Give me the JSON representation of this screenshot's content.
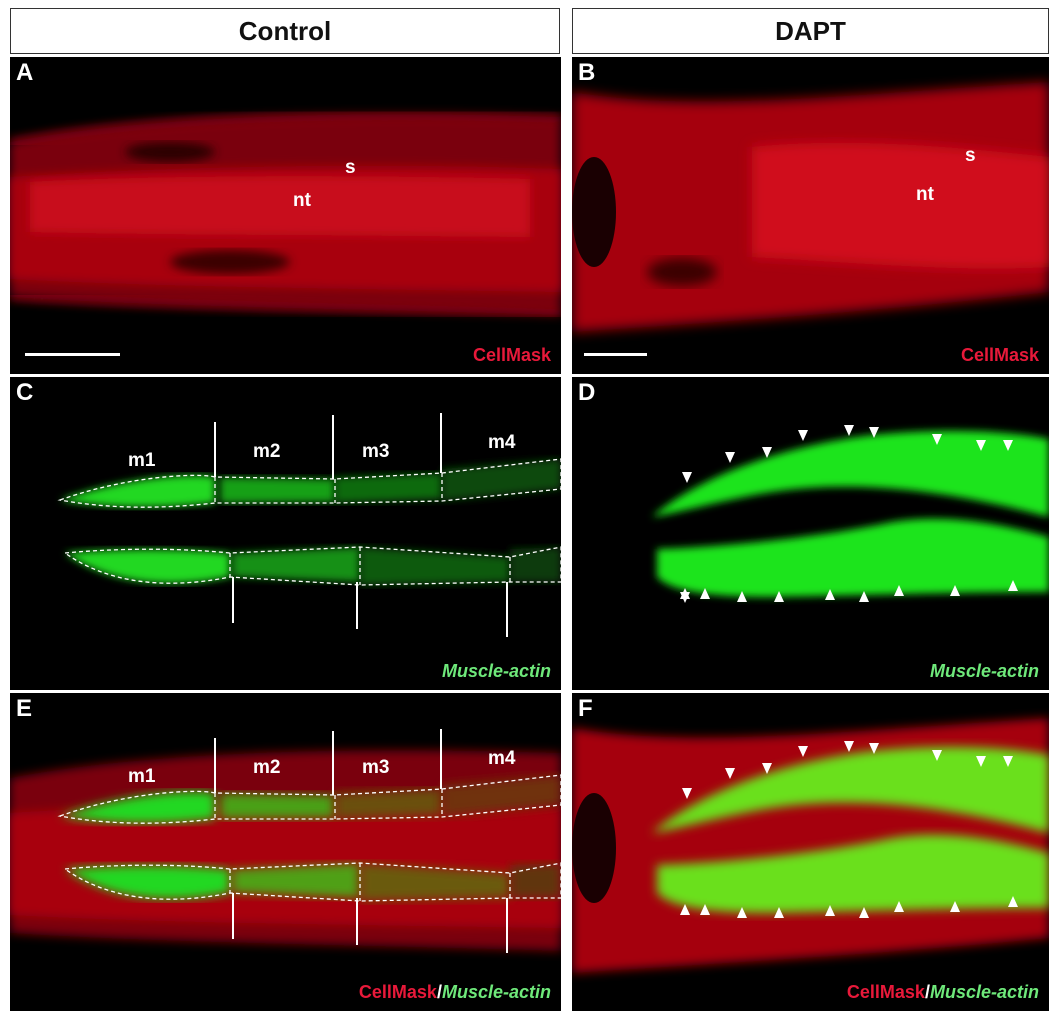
{
  "headers": {
    "control": "Control",
    "dapt": "DAPT"
  },
  "panels": {
    "A": {
      "letter": "A",
      "labels": {
        "s": "s",
        "nt": "nt"
      },
      "stain": "CellMask"
    },
    "B": {
      "letter": "B",
      "labels": {
        "s": "s",
        "nt": "nt"
      },
      "stain": "CellMask"
    },
    "C": {
      "letter": "C",
      "labels": [
        "m1",
        "m2",
        "m3",
        "m4"
      ],
      "stain": "Muscle-actin"
    },
    "D": {
      "letter": "D",
      "stain": "Muscle-actin"
    },
    "E": {
      "letter": "E",
      "labels": [
        "m1",
        "m2",
        "m3",
        "m4"
      ],
      "stain_red": "CellMask",
      "stain_sep": "/",
      "stain_green": "Muscle-actin"
    },
    "F": {
      "letter": "F",
      "stain_red": "CellMask",
      "stain_sep": "/",
      "stain_green": "Muscle-actin"
    }
  },
  "colors": {
    "cellmask": "#e8193a",
    "muscle_actin": "#6ee87a",
    "tissue_red": "#b3000e",
    "tissue_green": "#19e019"
  }
}
